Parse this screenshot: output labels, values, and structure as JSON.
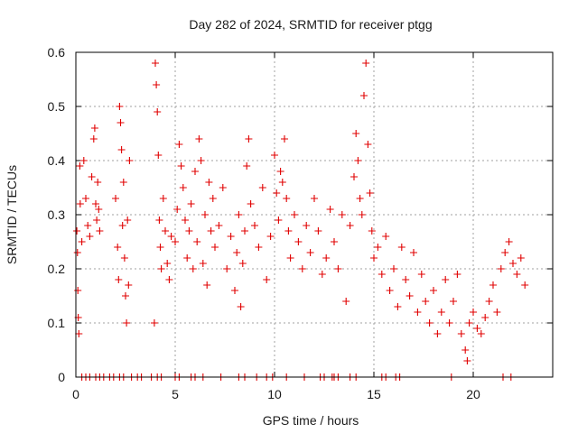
{
  "chart_data": {
    "type": "scatter",
    "title": "Day 282 of 2024, SRMTID for receiver ptgg",
    "xlabel": "GPS time / hours",
    "ylabel": "SRMTID / TECUs",
    "xlim": [
      0,
      24
    ],
    "ylim": [
      0,
      0.6
    ],
    "xticks": [
      "0",
      "5",
      "10",
      "15",
      "20"
    ],
    "xtick_values": [
      0,
      5,
      10,
      15,
      20
    ],
    "yticks": [
      "0",
      "0.1",
      "0.2",
      "0.3",
      "0.4",
      "0.5",
      "0.6"
    ],
    "ytick_values": [
      0,
      0.1,
      0.2,
      0.3,
      0.4,
      0.5,
      0.6
    ],
    "grid": true,
    "marker": "plus",
    "series": [
      {
        "name": "SRMTID",
        "color": "#e00000",
        "points": [
          [
            0.05,
            0.27
          ],
          [
            0.08,
            0.23
          ],
          [
            0.1,
            0.16
          ],
          [
            0.12,
            0.11
          ],
          [
            0.15,
            0.08
          ],
          [
            0.2,
            0.39
          ],
          [
            0.22,
            0.32
          ],
          [
            0.3,
            0.25
          ],
          [
            0.4,
            0.4
          ],
          [
            0.5,
            0.33
          ],
          [
            0.6,
            0.28
          ],
          [
            0.7,
            0.26
          ],
          [
            0.8,
            0.37
          ],
          [
            0.9,
            0.44
          ],
          [
            0.95,
            0.46
          ],
          [
            1.0,
            0.32
          ],
          [
            1.05,
            0.29
          ],
          [
            1.1,
            0.36
          ],
          [
            1.15,
            0.31
          ],
          [
            1.2,
            0.27
          ],
          [
            2.0,
            0.33
          ],
          [
            2.1,
            0.24
          ],
          [
            2.15,
            0.18
          ],
          [
            2.2,
            0.5
          ],
          [
            2.25,
            0.47
          ],
          [
            2.3,
            0.42
          ],
          [
            2.35,
            0.28
          ],
          [
            2.4,
            0.36
          ],
          [
            2.45,
            0.22
          ],
          [
            2.5,
            0.15
          ],
          [
            2.55,
            0.1
          ],
          [
            2.6,
            0.29
          ],
          [
            2.65,
            0.17
          ],
          [
            2.7,
            0.4
          ],
          [
            3.95,
            0.1
          ],
          [
            4.0,
            0.58
          ],
          [
            4.05,
            0.54
          ],
          [
            4.1,
            0.49
          ],
          [
            4.15,
            0.41
          ],
          [
            4.2,
            0.29
          ],
          [
            4.25,
            0.24
          ],
          [
            4.3,
            0.2
          ],
          [
            4.4,
            0.33
          ],
          [
            4.5,
            0.27
          ],
          [
            4.6,
            0.21
          ],
          [
            4.7,
            0.18
          ],
          [
            4.8,
            0.26
          ],
          [
            5.0,
            0.25
          ],
          [
            5.1,
            0.31
          ],
          [
            5.2,
            0.43
          ],
          [
            5.3,
            0.39
          ],
          [
            5.4,
            0.35
          ],
          [
            5.5,
            0.29
          ],
          [
            5.6,
            0.22
          ],
          [
            5.7,
            0.27
          ],
          [
            5.8,
            0.32
          ],
          [
            5.9,
            0.2
          ],
          [
            6.0,
            0.38
          ],
          [
            6.1,
            0.25
          ],
          [
            6.2,
            0.44
          ],
          [
            6.3,
            0.4
          ],
          [
            6.4,
            0.21
          ],
          [
            6.5,
            0.3
          ],
          [
            6.6,
            0.17
          ],
          [
            6.7,
            0.36
          ],
          [
            6.8,
            0.27
          ],
          [
            6.9,
            0.33
          ],
          [
            7.0,
            0.24
          ],
          [
            7.2,
            0.28
          ],
          [
            7.4,
            0.35
          ],
          [
            7.6,
            0.2
          ],
          [
            7.8,
            0.26
          ],
          [
            8.0,
            0.16
          ],
          [
            8.1,
            0.23
          ],
          [
            8.2,
            0.3
          ],
          [
            8.3,
            0.13
          ],
          [
            8.4,
            0.21
          ],
          [
            8.5,
            0.27
          ],
          [
            8.6,
            0.39
          ],
          [
            8.7,
            0.44
          ],
          [
            8.8,
            0.32
          ],
          [
            9.0,
            0.28
          ],
          [
            9.2,
            0.24
          ],
          [
            9.4,
            0.35
          ],
          [
            9.6,
            0.18
          ],
          [
            9.8,
            0.26
          ],
          [
            10.0,
            0.41
          ],
          [
            10.1,
            0.34
          ],
          [
            10.2,
            0.29
          ],
          [
            10.3,
            0.38
          ],
          [
            10.4,
            0.36
          ],
          [
            10.5,
            0.44
          ],
          [
            10.6,
            0.33
          ],
          [
            10.7,
            0.27
          ],
          [
            10.8,
            0.22
          ],
          [
            11.0,
            0.3
          ],
          [
            11.2,
            0.25
          ],
          [
            11.4,
            0.2
          ],
          [
            11.6,
            0.28
          ],
          [
            11.8,
            0.23
          ],
          [
            12.0,
            0.33
          ],
          [
            12.2,
            0.27
          ],
          [
            12.4,
            0.19
          ],
          [
            12.6,
            0.22
          ],
          [
            12.8,
            0.31
          ],
          [
            13.0,
            0.25
          ],
          [
            13.2,
            0.2
          ],
          [
            13.4,
            0.3
          ],
          [
            13.6,
            0.14
          ],
          [
            13.8,
            0.28
          ],
          [
            14.0,
            0.37
          ],
          [
            14.1,
            0.45
          ],
          [
            14.2,
            0.4
          ],
          [
            14.3,
            0.33
          ],
          [
            14.4,
            0.3
          ],
          [
            14.5,
            0.52
          ],
          [
            14.6,
            0.58
          ],
          [
            14.7,
            0.43
          ],
          [
            14.8,
            0.34
          ],
          [
            14.9,
            0.27
          ],
          [
            15.0,
            0.22
          ],
          [
            15.2,
            0.24
          ],
          [
            15.4,
            0.19
          ],
          [
            15.6,
            0.26
          ],
          [
            15.8,
            0.16
          ],
          [
            16.0,
            0.2
          ],
          [
            16.2,
            0.13
          ],
          [
            16.4,
            0.24
          ],
          [
            16.6,
            0.18
          ],
          [
            16.8,
            0.15
          ],
          [
            17.0,
            0.23
          ],
          [
            17.2,
            0.12
          ],
          [
            17.4,
            0.19
          ],
          [
            17.6,
            0.14
          ],
          [
            17.8,
            0.1
          ],
          [
            18.0,
            0.16
          ],
          [
            18.2,
            0.08
          ],
          [
            18.4,
            0.12
          ],
          [
            18.6,
            0.18
          ],
          [
            18.8,
            0.1
          ],
          [
            19.0,
            0.14
          ],
          [
            19.2,
            0.19
          ],
          [
            19.4,
            0.08
          ],
          [
            19.6,
            0.05
          ],
          [
            19.7,
            0.03
          ],
          [
            19.8,
            0.1
          ],
          [
            20.0,
            0.12
          ],
          [
            20.2,
            0.09
          ],
          [
            20.4,
            0.08
          ],
          [
            20.6,
            0.11
          ],
          [
            20.8,
            0.14
          ],
          [
            21.0,
            0.17
          ],
          [
            21.2,
            0.12
          ],
          [
            21.4,
            0.2
          ],
          [
            21.6,
            0.23
          ],
          [
            21.8,
            0.25
          ],
          [
            22.0,
            0.21
          ],
          [
            22.2,
            0.19
          ],
          [
            22.4,
            0.22
          ],
          [
            22.6,
            0.17
          ]
        ]
      },
      {
        "name": "zero values",
        "color": "#e00000",
        "x": [
          0.3,
          0.5,
          0.7,
          1.0,
          1.2,
          1.4,
          1.7,
          1.9,
          2.2,
          2.4,
          2.8,
          3.1,
          3.3,
          3.8,
          4.1,
          4.3,
          5.0,
          5.2,
          5.8,
          6.0,
          6.4,
          7.3,
          8.2,
          8.5,
          9.1,
          9.6,
          9.9,
          10.6,
          11.5,
          12.3,
          12.5,
          12.9,
          13.0,
          13.2,
          13.8,
          14.1,
          15.4,
          15.6,
          16.1,
          16.3,
          18.9,
          21.5,
          21.9
        ]
      }
    ]
  }
}
